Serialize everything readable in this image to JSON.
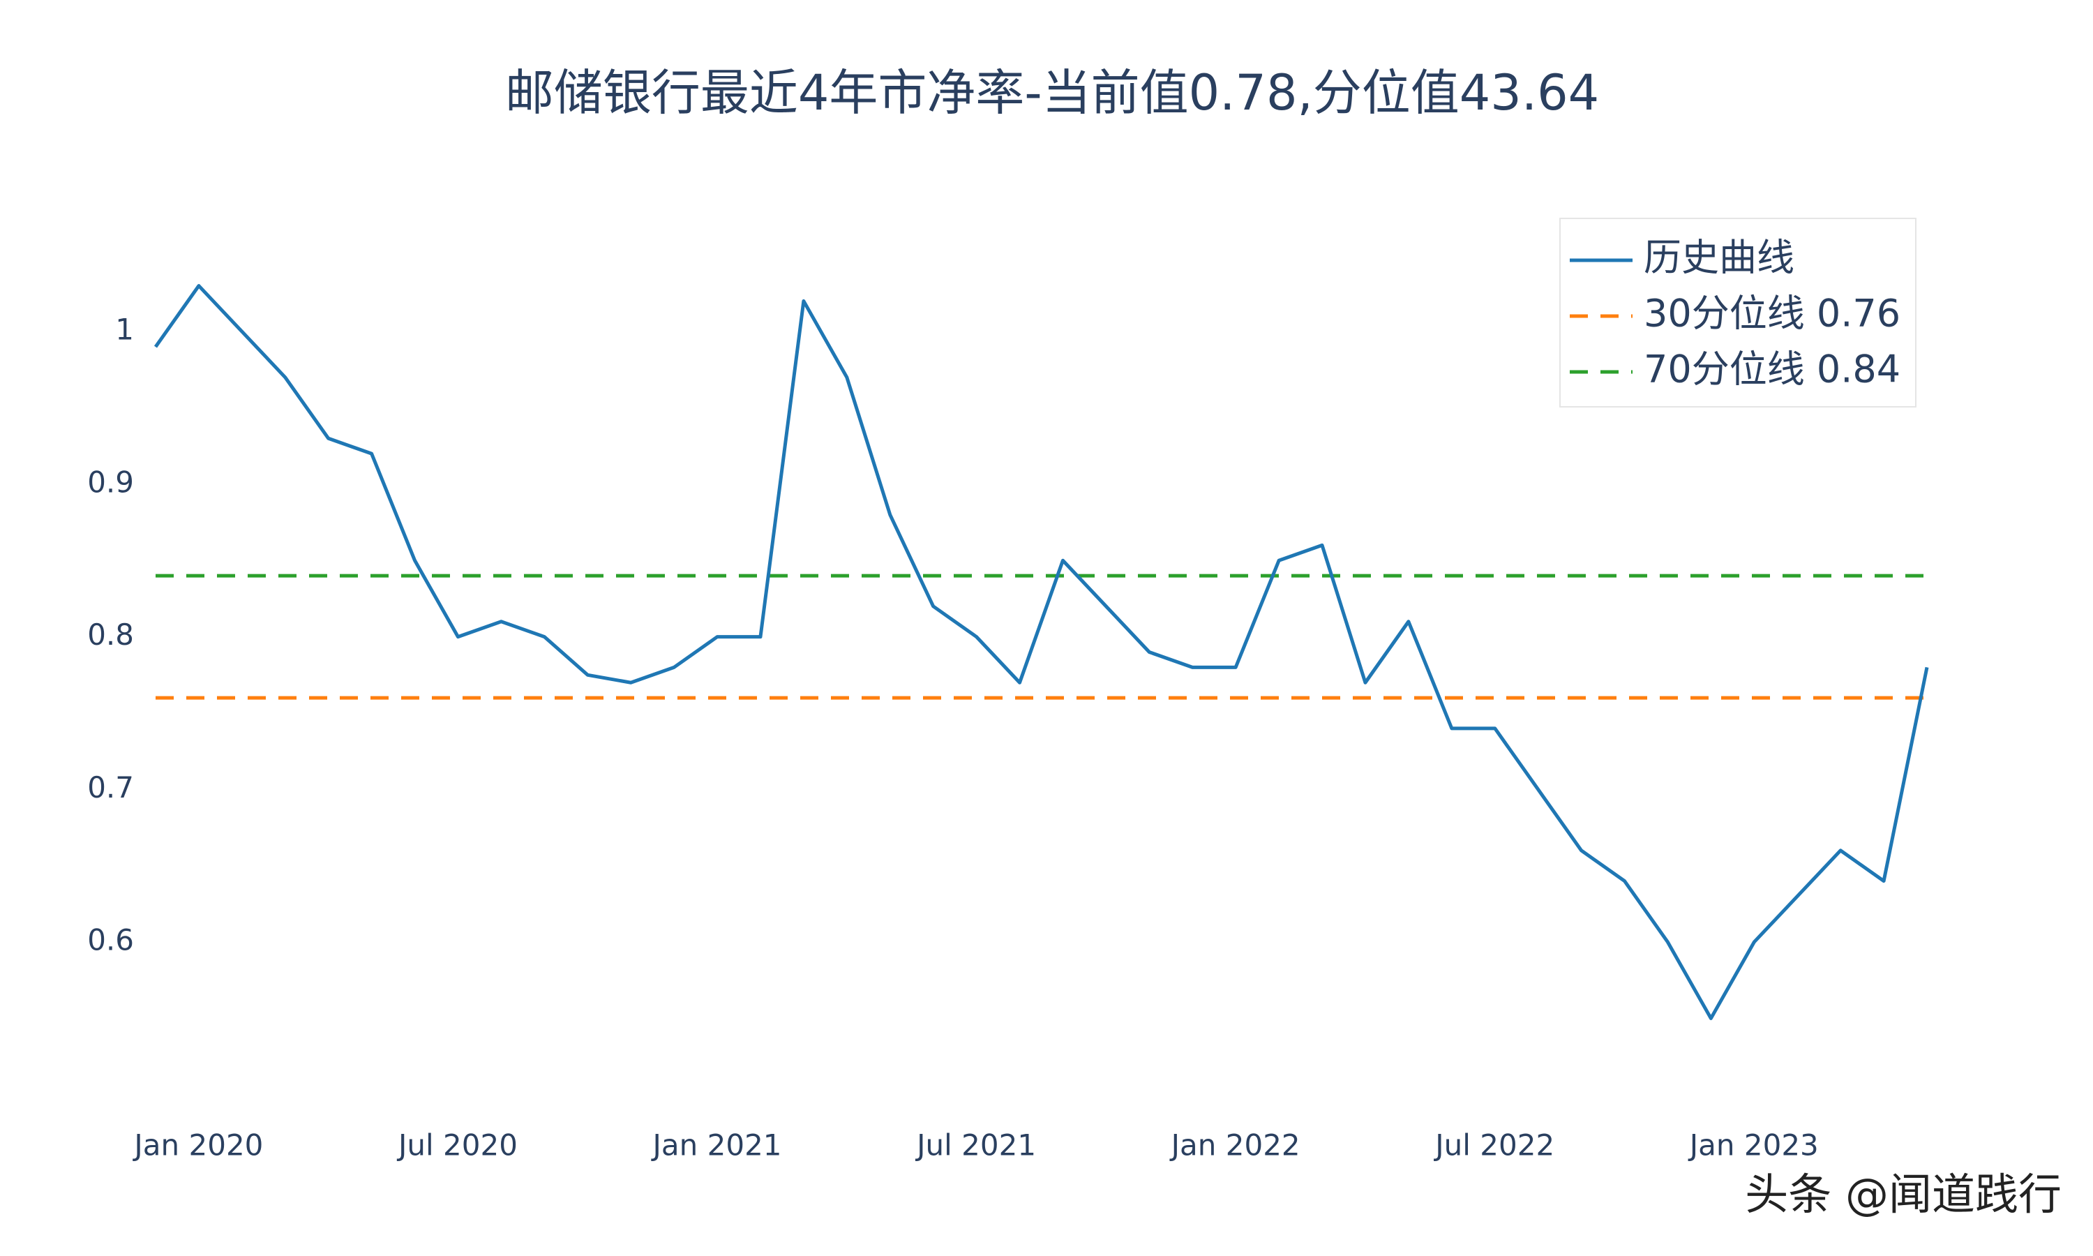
{
  "chart_data": {
    "type": "line",
    "title": "邮储银行最近4年市净率-当前值0.78,分位值43.64",
    "x": [
      "2019-12",
      "2020-01",
      "2020-02",
      "2020-03",
      "2020-04",
      "2020-05",
      "2020-06",
      "2020-07",
      "2020-08",
      "2020-09",
      "2020-10",
      "2020-11",
      "2020-12",
      "2021-01",
      "2021-02",
      "2021-03",
      "2021-04",
      "2021-05",
      "2021-06",
      "2021-07",
      "2021-08",
      "2021-09",
      "2021-10",
      "2021-11",
      "2021-12",
      "2022-01",
      "2022-02",
      "2022-03",
      "2022-04",
      "2022-05",
      "2022-06",
      "2022-07",
      "2022-08",
      "2022-09",
      "2022-10",
      "2022-11",
      "2022-12",
      "2023-01",
      "2023-02",
      "2023-03",
      "2023-04",
      "2023-05"
    ],
    "series": [
      {
        "name": "历史曲线",
        "color": "#1f77b4",
        "values": [
          0.99,
          1.03,
          1.0,
          0.97,
          0.93,
          0.92,
          0.85,
          0.8,
          0.81,
          0.8,
          0.775,
          0.77,
          0.78,
          0.8,
          0.8,
          1.02,
          0.97,
          0.88,
          0.82,
          0.8,
          0.77,
          0.85,
          0.82,
          0.79,
          0.78,
          0.78,
          0.85,
          0.86,
          0.77,
          0.81,
          0.74,
          0.74,
          0.7,
          0.66,
          0.64,
          0.6,
          0.55,
          0.6,
          0.63,
          0.66,
          0.64,
          0.78
        ]
      }
    ],
    "hlines": [
      {
        "name": "30分位线 0.76",
        "value": 0.76,
        "color": "#ff7f0e"
      },
      {
        "name": "70分位线 0.84",
        "value": 0.84,
        "color": "#2ca02c"
      }
    ],
    "xlim": [
      "2019-12",
      "2023-05"
    ],
    "xticks": [
      {
        "value": "2020-01",
        "label": "Jan 2020"
      },
      {
        "value": "2020-07",
        "label": "Jul 2020"
      },
      {
        "value": "2021-01",
        "label": "Jan 2021"
      },
      {
        "value": "2021-07",
        "label": "Jul 2021"
      },
      {
        "value": "2022-01",
        "label": "Jan 2022"
      },
      {
        "value": "2022-07",
        "label": "Jul 2022"
      },
      {
        "value": "2023-01",
        "label": "Jan 2023"
      }
    ],
    "ylim": [
      0.515,
      1.065
    ],
    "yticks": [
      0.6,
      0.7,
      0.8,
      0.9,
      1
    ],
    "legend": "top-right",
    "watermark": "头条 @闻道践行"
  }
}
